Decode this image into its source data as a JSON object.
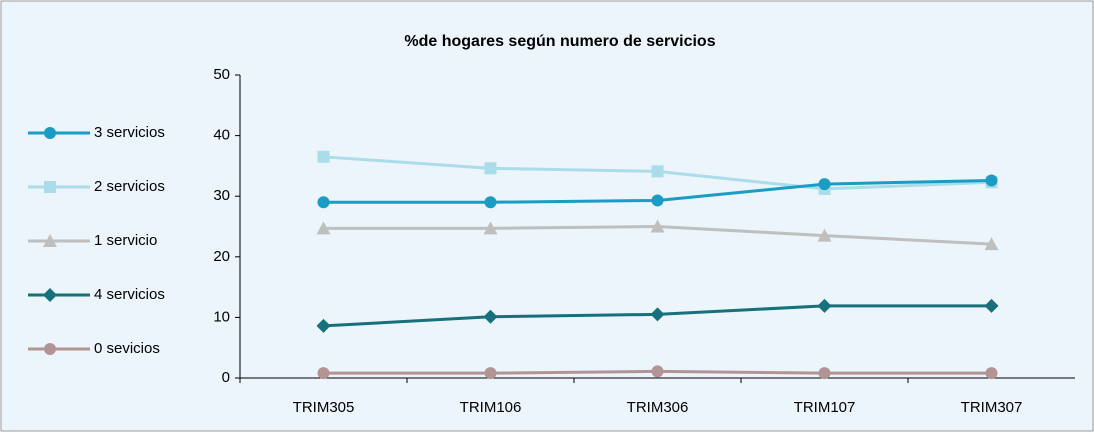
{
  "chart_data": {
    "type": "line",
    "title": "%de hogares según numero de servicios",
    "categories": [
      "TRIM305",
      "TRIM106",
      "TRIM306",
      "TRIM107",
      "TRIM307"
    ],
    "ylim": [
      0,
      50
    ],
    "yticks": [
      0,
      10,
      20,
      30,
      40,
      50
    ],
    "grid": false,
    "legend": "left",
    "series": [
      {
        "name": "3 servicios",
        "color": "#1a9cc4",
        "marker": "circle",
        "values": [
          29.0,
          29.0,
          29.3,
          32.0,
          32.6
        ]
      },
      {
        "name": "2 servicios",
        "color": "#aadde9",
        "marker": "square",
        "values": [
          36.5,
          34.6,
          34.1,
          31.2,
          32.3
        ]
      },
      {
        "name": "1 servicio",
        "color": "#bfbfbf",
        "marker": "triangle",
        "values": [
          24.7,
          24.7,
          25.0,
          23.5,
          22.1
        ]
      },
      {
        "name": "4 servicios",
        "color": "#17707c",
        "marker": "diamond",
        "values": [
          8.6,
          10.1,
          10.5,
          11.9,
          11.9
        ]
      },
      {
        "name": "0 sevicios",
        "color": "#b39494",
        "marker": "circle",
        "values": [
          0.8,
          0.8,
          1.1,
          0.8,
          0.8
        ]
      }
    ]
  }
}
